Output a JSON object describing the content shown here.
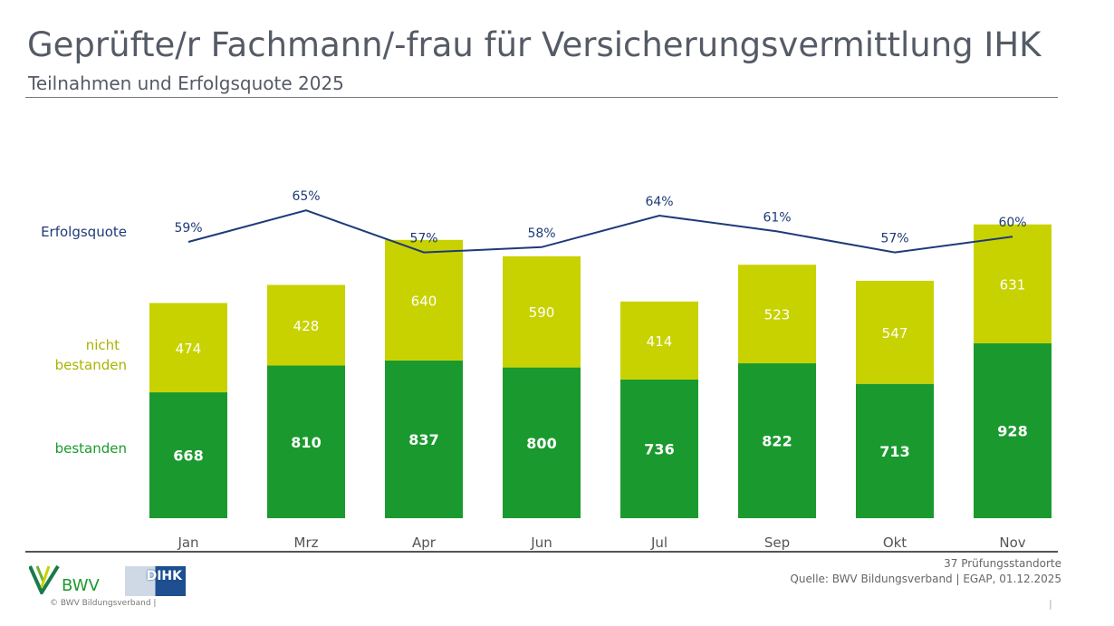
{
  "title": "Geprüfte/r Fachmann/-frau für Versicherungsvermittlung IHK",
  "subtitle": "Teilnahmen und Erfolgsquote 2025",
  "chart_data": {
    "type": "bar",
    "stacked": true,
    "categories": [
      "Jan",
      "Mrz",
      "Apr",
      "Jun",
      "Jul",
      "Sep",
      "Okt",
      "Nov"
    ],
    "series": [
      {
        "name": "bestanden",
        "values": [
          668,
          810,
          837,
          800,
          736,
          822,
          713,
          928
        ],
        "color": "#1a9a2e"
      },
      {
        "name": "nicht bestanden",
        "values": [
          474,
          428,
          640,
          590,
          414,
          523,
          547,
          631
        ],
        "color": "#c8d200"
      }
    ],
    "line": {
      "name": "Erfolgsquote",
      "values": [
        59,
        65,
        57,
        58,
        64,
        61,
        57,
        60
      ],
      "labels": [
        "59%",
        "65%",
        "57%",
        "58%",
        "64%",
        "61%",
        "57%",
        "60%"
      ],
      "color": "#1f3a7a"
    },
    "legend_placement": "left",
    "grid": false
  },
  "labels": {
    "erfolgsquote": "Erfolgsquote",
    "nicht": "nicht",
    "bestanden_nicht": "bestanden",
    "bestanden": "bestanden"
  },
  "footer": {
    "standorte": "37 Prüfungsstandorte",
    "quelle": "Quelle: BWV Bildungsverband | EGAP, 01.12.2025",
    "copyright": "© BWV Bildungsverband |",
    "page": "|",
    "bwv_logo": "BWV",
    "dihk_logo": "DIHK"
  }
}
